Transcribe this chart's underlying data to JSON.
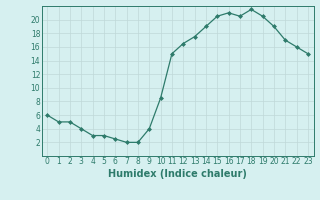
{
  "x": [
    0,
    1,
    2,
    3,
    4,
    5,
    6,
    7,
    8,
    9,
    10,
    11,
    12,
    13,
    14,
    15,
    16,
    17,
    18,
    19,
    20,
    21,
    22,
    23
  ],
  "y": [
    6,
    5,
    5,
    4,
    3,
    3,
    2.5,
    2,
    2,
    4,
    8.5,
    15,
    16.5,
    17.5,
    19,
    20.5,
    21,
    20.5,
    21.5,
    20.5,
    19,
    17,
    16,
    15
  ],
  "line_color": "#2e7b6b",
  "marker": "D",
  "marker_size": 2,
  "bg_color": "#d6f0f0",
  "grid_color": "#c0d8d8",
  "xlabel": "Humidex (Indice chaleur)",
  "xlim": [
    -0.5,
    23.5
  ],
  "ylim": [
    0,
    22
  ],
  "yticks": [
    2,
    4,
    6,
    8,
    10,
    12,
    14,
    16,
    18,
    20
  ],
  "xticks": [
    0,
    1,
    2,
    3,
    4,
    5,
    6,
    7,
    8,
    9,
    10,
    11,
    12,
    13,
    14,
    15,
    16,
    17,
    18,
    19,
    20,
    21,
    22,
    23
  ],
  "tick_fontsize": 5.5,
  "xlabel_fontsize": 7,
  "axis_color": "#2e7b6b",
  "line_width": 0.9
}
